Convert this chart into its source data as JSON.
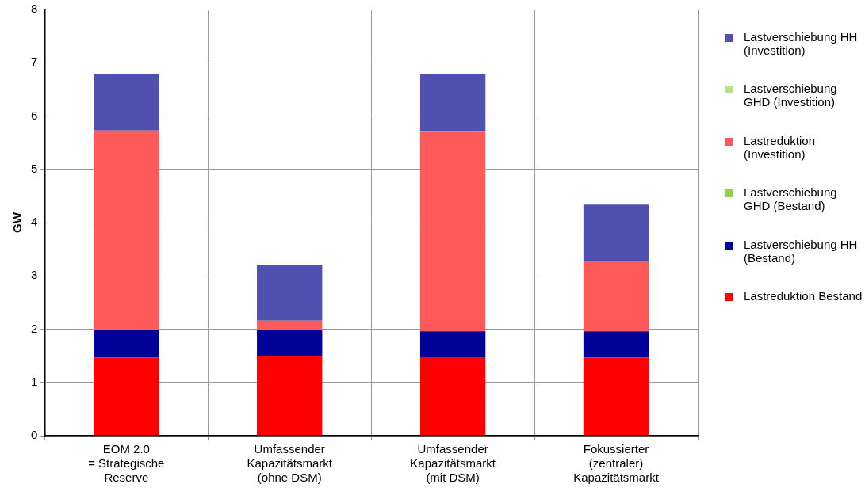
{
  "chart_data": {
    "type": "bar",
    "stacked": true,
    "ylabel": "GW",
    "categories": [
      "EOM 2.0\n= Strategische\nReserve",
      "Umfassender\nKapazitätsmarkt\n(ohne DSM)",
      "Umfassender\nKapazitätsmarkt\n(mit DSM)",
      "Fokussierter\n(zentraler)\nKapazitätsmarkt"
    ],
    "series": [
      {
        "name": "Lastreduktion Bestand",
        "color": "#ff0000",
        "values": [
          1.47,
          1.49,
          1.46,
          1.47
        ]
      },
      {
        "name": "Lastverschiebung HH (Bestand)",
        "color": "#000099",
        "values": [
          0.52,
          0.49,
          0.5,
          0.49
        ]
      },
      {
        "name": "Lastverschiebung GHD (Bestand)",
        "color": "#92d050",
        "values": [
          0,
          0,
          0,
          0
        ]
      },
      {
        "name": "Lastreduktion (Investition)",
        "color": "#ff5a5a",
        "values": [
          3.74,
          0.18,
          3.76,
          1.31
        ]
      },
      {
        "name": "Lastverschiebung GHD (Investition)",
        "color": "#b7e08a",
        "values": [
          0,
          0,
          0,
          0
        ]
      },
      {
        "name": "Lastverschiebung HH (Investition)",
        "color": "#5050b0",
        "values": [
          1.05,
          1.04,
          1.06,
          1.07
        ]
      }
    ],
    "ylim": [
      0,
      8
    ],
    "yticks": [
      0,
      1,
      2,
      3,
      4,
      5,
      6,
      7,
      8
    ],
    "grid": true,
    "legend": "right"
  }
}
